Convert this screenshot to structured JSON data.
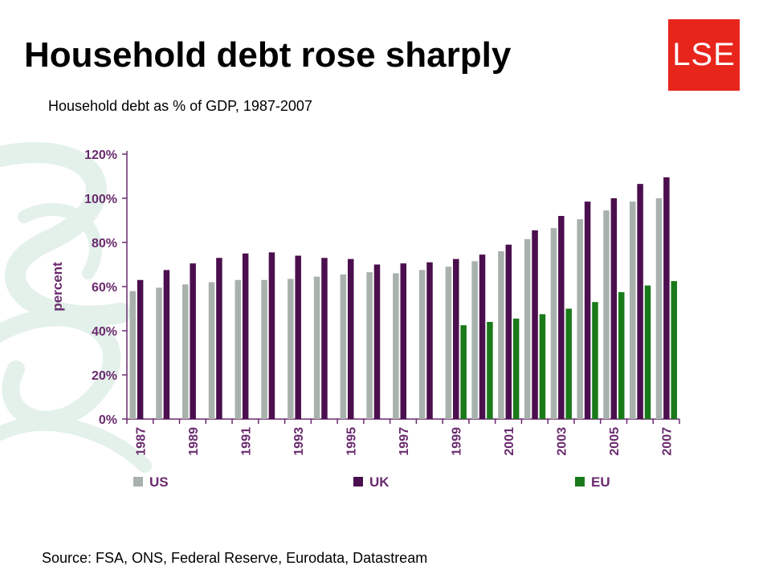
{
  "slide": {
    "title": "Household debt rose sharply",
    "logo_text": "LSE",
    "source": "Source: FSA, ONS, Federal Reserve, Eurodata, Datastream"
  },
  "colors": {
    "logo_bg": "#e8251b",
    "us": "#a9b1ac",
    "uk": "#4b0f4e",
    "eu": "#1a7a1a",
    "axis_text": "#6a2a6e",
    "swirl": "#e3f1ea"
  },
  "chart_data": {
    "type": "bar",
    "title": "Household debt as % of GDP, 1987-2007",
    "ylabel": "percent",
    "xlabel": "",
    "ylim": [
      0,
      120
    ],
    "ytick_labels": [
      "0%",
      "20%",
      "40%",
      "60%",
      "80%",
      "100%",
      "120%"
    ],
    "ytick_values": [
      0,
      20,
      40,
      60,
      80,
      100,
      120
    ],
    "categories": [
      "1987",
      "1988",
      "1989",
      "1990",
      "1991",
      "1992",
      "1993",
      "1994",
      "1995",
      "1996",
      "1997",
      "1998",
      "1999",
      "2000",
      "2001",
      "2002",
      "2003",
      "2004",
      "2005",
      "2006",
      "2007"
    ],
    "xtick_labels": [
      "1987",
      "",
      "1989",
      "",
      "1991",
      "",
      "1993",
      "",
      "1995",
      "",
      "1997",
      "",
      "1999",
      "",
      "2001",
      "",
      "2003",
      "",
      "2005",
      "",
      "2007"
    ],
    "legend_position": "bottom",
    "grid": false,
    "series": [
      {
        "name": "US",
        "color": "#a9b1ac",
        "values": [
          58,
          59.5,
          61,
          62,
          63,
          63,
          63.5,
          64.5,
          65.5,
          66.5,
          66,
          67.5,
          69,
          71.5,
          76,
          81.5,
          86.5,
          90.5,
          94.5,
          98.5,
          100
        ]
      },
      {
        "name": "UK",
        "color": "#4b0f4e",
        "values": [
          63,
          67.5,
          70.5,
          73,
          75,
          75.5,
          74,
          73,
          72.5,
          70,
          70.5,
          71,
          72.5,
          74.5,
          79,
          85.5,
          92,
          98.5,
          100,
          106.5,
          109.5
        ]
      },
      {
        "name": "EU",
        "color": "#1a7a1a",
        "values": [
          null,
          null,
          null,
          null,
          null,
          null,
          null,
          null,
          null,
          null,
          null,
          null,
          42.5,
          44,
          45.5,
          47.5,
          50,
          53,
          57.5,
          60.5,
          62.5
        ]
      }
    ]
  }
}
